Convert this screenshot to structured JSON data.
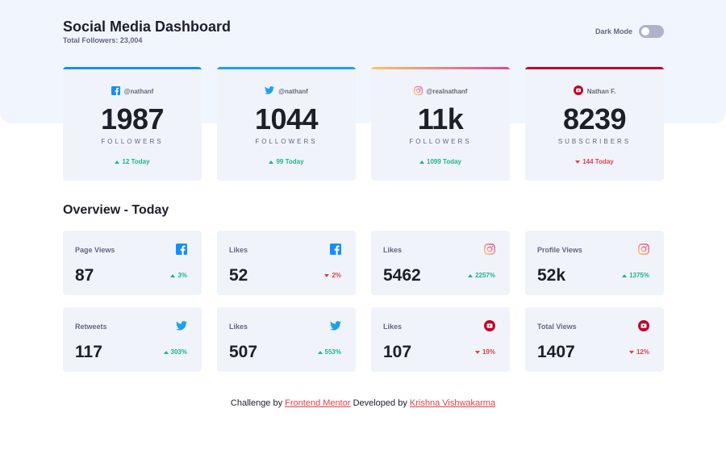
{
  "header": {
    "title": "Social Media Dashboard",
    "subtitle": "Total Followers: 23,004",
    "dark_mode_label": "Dark Mode",
    "dark_mode_on": false
  },
  "colors": {
    "facebook": "#178ff5",
    "twitter": "#1ca0f2",
    "instagram_gradient": [
      "#fdc468",
      "#df4996"
    ],
    "youtube": "#c4032a",
    "up": "#1eb589",
    "down": "#dc414c"
  },
  "cards": [
    {
      "network": "facebook",
      "icon": "facebook-icon",
      "handle": "@nathanf",
      "count": "1987",
      "unit": "FOLLOWERS",
      "delta": "12 Today",
      "trend": "up"
    },
    {
      "network": "twitter",
      "icon": "twitter-icon",
      "handle": "@nathanf",
      "count": "1044",
      "unit": "FOLLOWERS",
      "delta": "99 Today",
      "trend": "up"
    },
    {
      "network": "instagram",
      "icon": "instagram-icon",
      "handle": "@realnathanf",
      "count": "11k",
      "unit": "FOLLOWERS",
      "delta": "1099 Today",
      "trend": "up"
    },
    {
      "network": "youtube",
      "icon": "youtube-icon",
      "handle": "Nathan F.",
      "count": "8239",
      "unit": "SUBSCRIBERS",
      "delta": "144 Today",
      "trend": "down"
    }
  ],
  "overview": {
    "title": "Overview - Today",
    "tiles": [
      {
        "label": "Page Views",
        "network": "facebook",
        "icon": "facebook-icon",
        "value": "87",
        "delta": "3%",
        "trend": "up"
      },
      {
        "label": "Likes",
        "network": "facebook",
        "icon": "facebook-icon",
        "value": "52",
        "delta": "2%",
        "trend": "down"
      },
      {
        "label": "Likes",
        "network": "instagram",
        "icon": "instagram-icon",
        "value": "5462",
        "delta": "2257%",
        "trend": "up"
      },
      {
        "label": "Profile Views",
        "network": "instagram",
        "icon": "instagram-icon",
        "value": "52k",
        "delta": "1375%",
        "trend": "up"
      },
      {
        "label": "Retweets",
        "network": "twitter",
        "icon": "twitter-icon",
        "value": "117",
        "delta": "303%",
        "trend": "up"
      },
      {
        "label": "Likes",
        "network": "twitter",
        "icon": "twitter-icon",
        "value": "507",
        "delta": "553%",
        "trend": "up"
      },
      {
        "label": "Likes",
        "network": "youtube",
        "icon": "youtube-icon",
        "value": "107",
        "delta": "19%",
        "trend": "down"
      },
      {
        "label": "Total Views",
        "network": "youtube",
        "icon": "youtube-icon",
        "value": "1407",
        "delta": "12%",
        "trend": "down"
      }
    ]
  },
  "footer": {
    "prefix": "Challenge by",
    "link1": "Frontend Mentor",
    "middle": "Developed by",
    "link2": "Krishna Vishwakarma"
  }
}
